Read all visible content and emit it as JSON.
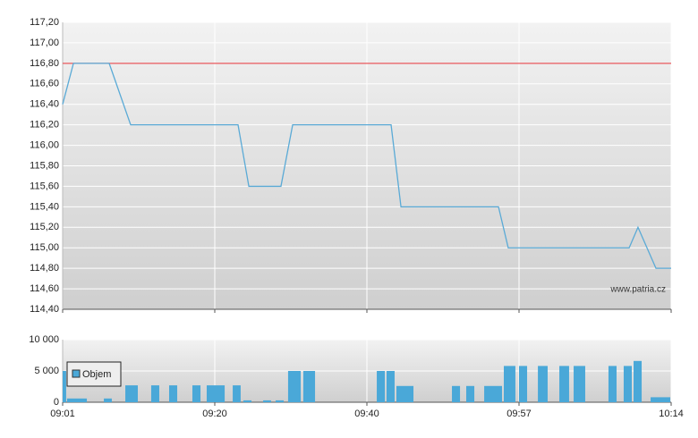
{
  "chart_data": [
    {
      "type": "line",
      "annotation": "www.patria.cz",
      "xlim": [
        0,
        4
      ],
      "xticks": [
        {
          "value": 0,
          "label": "09:01"
        },
        {
          "value": 1,
          "label": "09:20"
        },
        {
          "value": 2,
          "label": "09:40"
        },
        {
          "value": 3,
          "label": "09:57"
        },
        {
          "value": 4,
          "label": "10:14"
        }
      ],
      "ylim": [
        114.4,
        117.2
      ],
      "yticks": [
        {
          "value": 114.4,
          "label": "114,40"
        },
        {
          "value": 114.6,
          "label": "114,60"
        },
        {
          "value": 114.8,
          "label": "114,80"
        },
        {
          "value": 115.0,
          "label": "115,00"
        },
        {
          "value": 115.2,
          "label": "115,20"
        },
        {
          "value": 115.4,
          "label": "115,40"
        },
        {
          "value": 115.6,
          "label": "115,60"
        },
        {
          "value": 115.8,
          "label": "115,80"
        },
        {
          "value": 116.0,
          "label": "116,00"
        },
        {
          "value": 116.2,
          "label": "116,20"
        },
        {
          "value": 116.4,
          "label": "116,40"
        },
        {
          "value": 116.6,
          "label": "116,60"
        },
        {
          "value": 116.8,
          "label": "116,80"
        },
        {
          "value": 117.0,
          "label": "117,00"
        },
        {
          "value": 117.2,
          "label": "117,20"
        }
      ],
      "grid": true,
      "reference_lines": [
        {
          "value": 116.8,
          "color": "#e8585c"
        }
      ],
      "x": [
        0,
        0.071,
        0.306,
        0.447,
        1.153,
        1.224,
        1.435,
        1.512,
        2.159,
        2.224,
        2.865,
        2.929,
        3.724,
        3.782,
        3.9,
        4
      ],
      "series": [
        {
          "color": "#5aaad6",
          "values": [
            116.4,
            116.8,
            116.8,
            116.2,
            116.2,
            115.6,
            115.6,
            116.2,
            116.2,
            115.4,
            115.4,
            115.0,
            115.0,
            115.2,
            114.8,
            114.8
          ]
        }
      ]
    },
    {
      "type": "bar",
      "xlim": [
        0,
        4
      ],
      "xticks": [
        {
          "value": 0,
          "label": "09:01"
        },
        {
          "value": 1,
          "label": "09:20"
        },
        {
          "value": 2,
          "label": "09:40"
        },
        {
          "value": 3,
          "label": "09:57"
        },
        {
          "value": 4,
          "label": "10:14"
        }
      ],
      "ylim": [
        0,
        10000
      ],
      "yticks": [
        {
          "value": 0,
          "label": "0"
        },
        {
          "value": 5000,
          "label": "5 000"
        },
        {
          "value": 10000,
          "label": "10 000"
        }
      ],
      "grid": true,
      "legend": "upper left",
      "bar_starts": [
        0,
        0.029,
        0.271,
        0.412,
        0.582,
        0.7,
        0.853,
        0.947,
        1.118,
        1.188,
        1.318,
        1.4,
        1.482,
        1.582,
        2.065,
        2.129,
        2.194,
        2.559,
        2.653,
        2.771,
        2.9,
        3.0,
        3.124,
        3.265,
        3.359,
        3.588,
        3.688,
        3.753,
        3.865
      ],
      "bar_ends": [
        0.029,
        0.165,
        0.329,
        0.5,
        0.641,
        0.759,
        0.912,
        1.071,
        1.176,
        1.247,
        1.376,
        1.459,
        1.571,
        1.665,
        2.124,
        2.188,
        2.312,
        2.618,
        2.712,
        2.894,
        2.982,
        3.059,
        3.194,
        3.335,
        3.441,
        3.647,
        3.747,
        3.812,
        4
      ],
      "series": [
        {
          "name": "Objem",
          "color": "#4aa8d8",
          "values": [
            5000,
            600,
            600,
            2700,
            2700,
            2700,
            2700,
            2700,
            2700,
            300,
            300,
            300,
            5000,
            5000,
            5000,
            5000,
            2600,
            2600,
            2600,
            2600,
            5800,
            5800,
            5800,
            5800,
            5800,
            5800,
            5800,
            6600,
            800
          ]
        }
      ]
    }
  ]
}
